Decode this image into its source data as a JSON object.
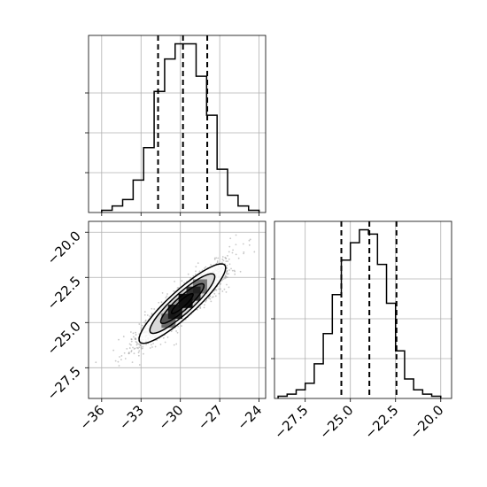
{
  "chart_data": {
    "type": "corner",
    "parameters": [
      "",
      ""
    ],
    "grid": true,
    "panels": [
      {
        "name": "marginal-param-1",
        "type": "histogram",
        "x_range": [
          -37,
          -23.5
        ],
        "x_ticks": [
          -36,
          -33,
          -30,
          -27,
          -24
        ],
        "x_tick_labels_shown": false,
        "bin_edges": [
          -36.0,
          -35.2,
          -34.4,
          -33.6,
          -32.8,
          -32.0,
          -31.2,
          -30.4,
          -29.6,
          -28.8,
          -28.0,
          -27.2,
          -26.4,
          -25.6,
          -24.8,
          -24.0
        ],
        "counts": [
          1,
          3,
          6,
          15,
          30,
          56,
          71,
          78,
          78,
          63,
          45,
          20,
          8,
          3,
          1
        ],
        "quantiles": [
          -31.7,
          -29.8,
          -27.95
        ]
      },
      {
        "name": "marginal-param-2",
        "type": "histogram",
        "x_range": [
          -29.2,
          -19.4
        ],
        "x_ticks": [
          -27.5,
          -25.0,
          -22.5,
          -20.0
        ],
        "x_tick_labels": [
          "−27.5",
          "−25.0",
          "−22.5",
          "−20.0"
        ],
        "bin_edges": [
          -29.0,
          -28.5,
          -28.0,
          -27.5,
          -27.0,
          -26.5,
          -26.0,
          -25.5,
          -25.0,
          -24.5,
          -24.0,
          -23.5,
          -23.0,
          -22.5,
          -22.0,
          -21.5,
          -21.0,
          -20.5,
          -20.0
        ],
        "counts": [
          1,
          2,
          4,
          7,
          16,
          30,
          48,
          64,
          72,
          78,
          76,
          62,
          44,
          22,
          9,
          4,
          2,
          1
        ],
        "quantiles": [
          -25.5,
          -23.95,
          -22.45
        ]
      },
      {
        "name": "joint-param-1-vs-2",
        "type": "2d-density",
        "x_range": [
          -37,
          -23.5
        ],
        "y_range": [
          -29.2,
          -19.4
        ],
        "x_ticks": [
          -36,
          -33,
          -30,
          -27,
          -24
        ],
        "x_tick_labels": [
          "−36",
          "−33",
          "−30",
          "−27",
          "−24"
        ],
        "y_ticks": [
          -20.0,
          -22.5,
          -25.0,
          -27.5
        ],
        "y_tick_labels": [
          "−20.0",
          "−22.5",
          "−25.0",
          "−27.5"
        ],
        "mean": [
          -29.85,
          -23.95
        ],
        "std": [
          1.65,
          1.1
        ],
        "correlation": 0.9,
        "contour_levels_sigma": [
          0.5,
          1.0,
          1.5,
          2.0
        ]
      }
    ]
  },
  "colors": {
    "line": "#000000",
    "grid": "#b0b0b0",
    "points": "#9a9a9a",
    "fill_outer": "#d9d9d9",
    "fill_mid": "#a6a6a6",
    "fill_inner": "#6e6e6e",
    "fill_core": "#111111"
  }
}
